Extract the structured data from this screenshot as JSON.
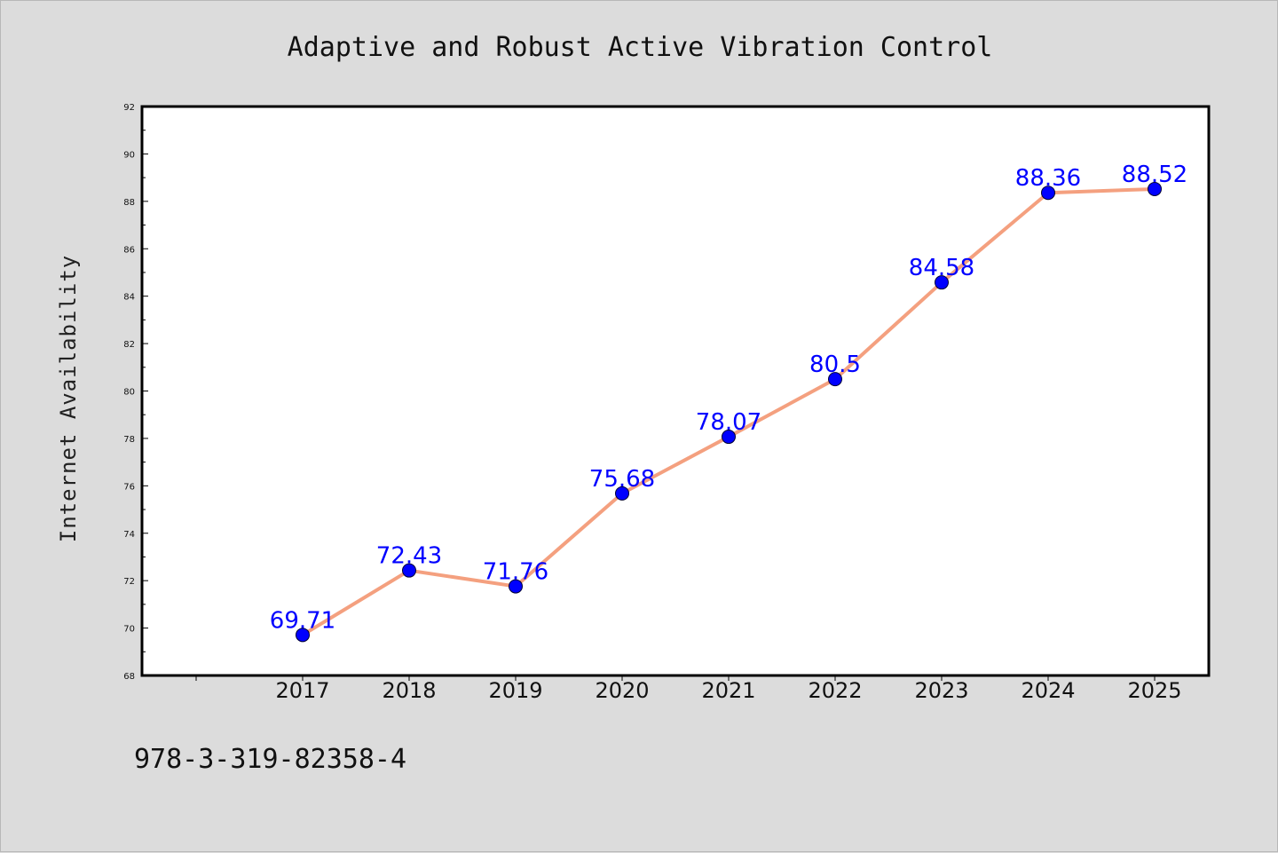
{
  "chart_data": {
    "type": "line",
    "title": "Adaptive and Robust Active Vibration Control",
    "xlabel": "",
    "ylabel": "Internet Availability",
    "categories": [
      "2017",
      "2018",
      "2019",
      "2020",
      "2021",
      "2022",
      "2023",
      "2024",
      "2025"
    ],
    "values": [
      69.71,
      72.43,
      71.76,
      75.68,
      78.07,
      80.5,
      84.58,
      88.36,
      88.52
    ],
    "data_labels": [
      "69.71",
      "72.43",
      "71.76",
      "75.68",
      "78.07",
      "80.5",
      "84.58",
      "88.36",
      "88.52"
    ],
    "ylim": [
      68,
      92
    ],
    "yticks": [
      "68",
      "70",
      "72",
      "74",
      "76",
      "78",
      "80",
      "82",
      "84",
      "86",
      "88",
      "90",
      "92"
    ],
    "grid": false,
    "legend": "none",
    "colors": {
      "line": "#f4a07f",
      "marker": "#0000ff",
      "data_label": "#0000ff",
      "background": "#dcdcdc",
      "plot_area": "#ffffff"
    }
  },
  "footer": {
    "text": "978-3-319-82358-4"
  }
}
